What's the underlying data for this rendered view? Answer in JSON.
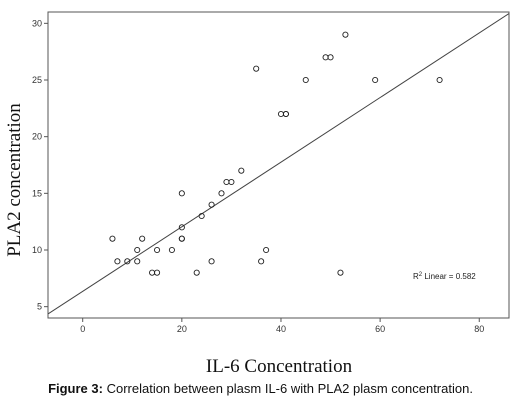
{
  "chart_data": {
    "type": "scatter",
    "title": "",
    "xlabel": "IL-6  Concentration",
    "ylabel": "PLA2 concentration",
    "xlim": [
      -7,
      86
    ],
    "ylim": [
      4,
      31
    ],
    "xticks": [
      0,
      20,
      40,
      60,
      80
    ],
    "yticks": [
      5,
      10,
      15,
      20,
      25,
      30
    ],
    "grid": false,
    "points": [
      {
        "x": 6,
        "y": 11
      },
      {
        "x": 7,
        "y": 9
      },
      {
        "x": 9,
        "y": 9
      },
      {
        "x": 11,
        "y": 10
      },
      {
        "x": 11,
        "y": 9
      },
      {
        "x": 12,
        "y": 11
      },
      {
        "x": 14,
        "y": 8
      },
      {
        "x": 15,
        "y": 8
      },
      {
        "x": 15,
        "y": 10
      },
      {
        "x": 18,
        "y": 10
      },
      {
        "x": 20,
        "y": 12
      },
      {
        "x": 20,
        "y": 11
      },
      {
        "x": 20,
        "y": 11
      },
      {
        "x": 20,
        "y": 15
      },
      {
        "x": 23,
        "y": 8
      },
      {
        "x": 24,
        "y": 13
      },
      {
        "x": 26,
        "y": 14
      },
      {
        "x": 26,
        "y": 9
      },
      {
        "x": 28,
        "y": 15
      },
      {
        "x": 29,
        "y": 16
      },
      {
        "x": 30,
        "y": 16
      },
      {
        "x": 32,
        "y": 17
      },
      {
        "x": 35,
        "y": 26
      },
      {
        "x": 36,
        "y": 9
      },
      {
        "x": 37,
        "y": 10
      },
      {
        "x": 40,
        "y": 22
      },
      {
        "x": 41,
        "y": 22
      },
      {
        "x": 41,
        "y": 22
      },
      {
        "x": 45,
        "y": 25
      },
      {
        "x": 49,
        "y": 27
      },
      {
        "x": 50,
        "y": 27
      },
      {
        "x": 52,
        "y": 8
      },
      {
        "x": 53,
        "y": 29
      },
      {
        "x": 59,
        "y": 25
      },
      {
        "x": 72,
        "y": 25
      }
    ],
    "fit_line": {
      "intercept": 6.35,
      "slope": 0.285
    },
    "annotation": {
      "prefix": "R",
      "superscript": "2",
      "text": " Linear = 0.582"
    }
  },
  "caption": {
    "label": "Figure 3:",
    "text": " Correlation between plasm IL-6 with PLA2 plasm concentration."
  }
}
